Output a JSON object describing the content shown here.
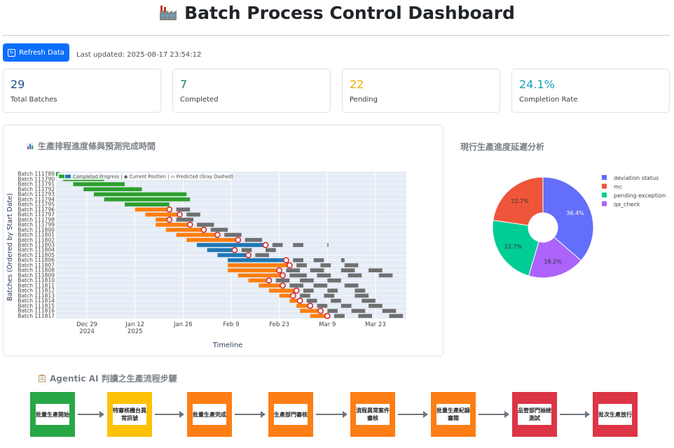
{
  "header": {
    "title": "Batch Process Control Dashboard",
    "icon": "factory-icon"
  },
  "toolbar": {
    "refresh_label": "Refresh Data",
    "last_updated": "Last updated: 2025-08-17 23:54:12"
  },
  "stats": [
    {
      "value": "29",
      "label": "Total Batches",
      "color": "#1f4e8c"
    },
    {
      "value": "7",
      "label": "Completed",
      "color": "#198754"
    },
    {
      "value": "22",
      "label": "Pending",
      "color": "#f0ad00"
    },
    {
      "value": "24.1%",
      "label": "Completion Rate",
      "color": "#17a2b8"
    }
  ],
  "gantt": {
    "title": "生產排程進度條與預測完成時間",
    "legend": "Completed Progress | ◉ Current Position | ▭ Predicted (Gray Dashed)",
    "ylabel": "Batches (Ordered by Start Date)",
    "xlabel": "Timeline",
    "xticks": [
      {
        "label": "Dec 29",
        "sub": "2024",
        "date": "2024-12-29"
      },
      {
        "label": "Jan 12",
        "sub": "2025",
        "date": "2025-01-12"
      },
      {
        "label": "Jan 26",
        "sub": "",
        "date": "2025-01-26"
      },
      {
        "label": "Feb 9",
        "sub": "",
        "date": "2025-02-09"
      },
      {
        "label": "Feb 23",
        "sub": "",
        "date": "2025-02-23"
      },
      {
        "label": "Mar 9",
        "sub": "",
        "date": "2025-03-09"
      },
      {
        "label": "Mar 23",
        "sub": "",
        "date": "2025-03-23"
      }
    ],
    "colors": {
      "completed": "#2ca02c",
      "orange": "#ff7f0e",
      "blue": "#1f77b4",
      "predicted": "#707070",
      "marker": "#d62728"
    }
  },
  "chart_data": [
    {
      "type": "bar",
      "title": "生產排程進度條與預測完成時間",
      "xlabel": "Timeline",
      "ylabel": "Batches (Ordered by Start Date)",
      "xlim": [
        "2024-12-20",
        "2025-04-01"
      ],
      "rows": [
        {
          "batch": "Batch 111789",
          "start": "2024-12-19",
          "progress_end": "2024-12-21",
          "status": "completed",
          "current": null,
          "predicted": []
        },
        {
          "batch": "Batch 111790",
          "start": "2024-12-22",
          "progress_end": "2025-01-03",
          "status": "completed",
          "current": null,
          "predicted": []
        },
        {
          "batch": "Batch 111791",
          "start": "2024-12-25",
          "progress_end": "2025-01-09",
          "status": "completed",
          "current": null,
          "predicted": []
        },
        {
          "batch": "Batch 111792",
          "start": "2024-12-28",
          "progress_end": "2025-01-14",
          "status": "completed",
          "current": null,
          "predicted": []
        },
        {
          "batch": "Batch 111793",
          "start": "2024-12-31",
          "progress_end": "2025-01-27",
          "status": "completed",
          "current": null,
          "predicted": []
        },
        {
          "batch": "Batch 111794",
          "start": "2025-01-03",
          "progress_end": "2025-01-28",
          "status": "completed",
          "current": null,
          "predicted": []
        },
        {
          "batch": "Batch 111795",
          "start": "2025-01-09",
          "progress_end": "2025-01-22",
          "status": "completed",
          "current": null,
          "predicted": []
        },
        {
          "batch": "Batch 111796",
          "start": "2025-01-12",
          "progress_end": "2025-01-22",
          "status": "in-progress",
          "current": "2025-01-22",
          "predicted": [
            [
              "2025-01-24",
              "2025-01-28"
            ]
          ]
        },
        {
          "batch": "Batch 111797",
          "start": "2025-01-15",
          "progress_end": "2025-01-25",
          "status": "in-progress",
          "current": "2025-01-25",
          "predicted": [
            [
              "2025-01-27",
              "2025-01-31"
            ]
          ]
        },
        {
          "batch": "Batch 111798",
          "start": "2025-01-18",
          "progress_end": "2025-01-22",
          "status": "in-progress",
          "current": "2025-01-22",
          "predicted": [
            [
              "2025-01-24",
              "2025-01-29"
            ]
          ]
        },
        {
          "batch": "Batch 111799",
          "start": "2025-01-18",
          "progress_end": "2025-01-28",
          "status": "in-progress",
          "current": "2025-01-28",
          "predicted": [
            [
              "2025-01-30",
              "2025-02-04"
            ]
          ]
        },
        {
          "batch": "Batch 111800",
          "start": "2025-01-21",
          "progress_end": "2025-02-01",
          "status": "in-progress",
          "current": "2025-02-01",
          "predicted": [
            [
              "2025-02-03",
              "2025-02-08"
            ]
          ]
        },
        {
          "batch": "Batch 111801",
          "start": "2025-01-24",
          "progress_end": "2025-02-05",
          "status": "in-progress",
          "current": "2025-02-05",
          "predicted": [
            [
              "2025-02-07",
              "2025-02-12"
            ]
          ]
        },
        {
          "batch": "Batch 111802",
          "start": "2025-01-27",
          "progress_end": "2025-02-11",
          "status": "in-progress",
          "current": "2025-02-11",
          "predicted": [
            [
              "2025-02-13",
              "2025-02-18"
            ]
          ]
        },
        {
          "batch": "Batch 111803",
          "start": "2025-01-30",
          "progress_end": "2025-02-19",
          "status": "in-progress-blue",
          "current": "2025-02-19",
          "predicted": [
            [
              "2025-02-21",
              "2025-02-24"
            ],
            [
              "2025-02-27",
              "2025-03-02"
            ],
            [
              "2025-03-09",
              "2025-03-09"
            ]
          ]
        },
        {
          "batch": "Batch 111804",
          "start": "2025-02-02",
          "progress_end": "2025-02-10",
          "status": "in-progress-blue",
          "current": "2025-02-10",
          "predicted": [
            [
              "2025-02-12",
              "2025-02-15"
            ],
            [
              "2025-02-19",
              "2025-02-22"
            ]
          ]
        },
        {
          "batch": "Batch 111805",
          "start": "2025-02-05",
          "progress_end": "2025-02-14",
          "status": "in-progress-blue",
          "current": "2025-02-14",
          "predicted": [
            [
              "2025-02-16",
              "2025-02-20"
            ]
          ]
        },
        {
          "batch": "Batch 111806",
          "start": "2025-02-08",
          "progress_end": "2025-02-25",
          "status": "in-progress-blue",
          "current": "2025-02-25",
          "predicted": [
            [
              "2025-02-27",
              "2025-03-02"
            ],
            [
              "2025-03-05",
              "2025-03-08"
            ],
            [
              "2025-03-13",
              "2025-03-14"
            ]
          ]
        },
        {
          "batch": "Batch 111807",
          "start": "2025-02-08",
          "progress_end": "2025-02-26",
          "status": "in-progress",
          "current": "2025-02-26",
          "predicted": [
            [
              "2025-02-28",
              "2025-03-03"
            ],
            [
              "2025-03-07",
              "2025-03-10"
            ],
            [
              "2025-03-14",
              "2025-03-18"
            ]
          ]
        },
        {
          "batch": "Batch 111808",
          "start": "2025-02-08",
          "progress_end": "2025-02-23",
          "status": "in-progress",
          "current": "2025-02-23",
          "predicted": [
            [
              "2025-02-25",
              "2025-03-01"
            ],
            [
              "2025-03-04",
              "2025-03-08"
            ],
            [
              "2025-03-13",
              "2025-03-17"
            ],
            [
              "2025-03-21",
              "2025-03-25"
            ]
          ]
        },
        {
          "batch": "Batch 111809",
          "start": "2025-02-11",
          "progress_end": "2025-02-24",
          "status": "in-progress",
          "current": "2025-02-24",
          "predicted": [
            [
              "2025-02-26",
              "2025-03-03"
            ],
            [
              "2025-03-06",
              "2025-03-10"
            ],
            [
              "2025-03-15",
              "2025-03-19"
            ],
            [
              "2025-03-24",
              "2025-03-28"
            ]
          ]
        },
        {
          "batch": "Batch 111810",
          "start": "2025-02-14",
          "progress_end": "2025-02-20",
          "status": "in-progress",
          "current": "2025-02-20",
          "predicted": [
            [
              "2025-02-22",
              "2025-02-26"
            ],
            [
              "2025-03-01",
              "2025-03-05"
            ],
            [
              "2025-03-09",
              "2025-03-13"
            ]
          ]
        },
        {
          "batch": "Batch 111811",
          "start": "2025-02-17",
          "progress_end": "2025-02-24",
          "status": "in-progress",
          "current": "2025-02-24",
          "predicted": [
            [
              "2025-02-26",
              "2025-03-02"
            ],
            [
              "2025-03-05",
              "2025-03-09"
            ],
            [
              "2025-03-14",
              "2025-03-18"
            ]
          ]
        },
        {
          "batch": "Batch 111812",
          "start": "2025-02-20",
          "progress_end": "2025-02-28",
          "status": "in-progress",
          "current": "2025-02-28",
          "predicted": [
            [
              "2025-03-02",
              "2025-03-05"
            ],
            [
              "2025-03-09",
              "2025-03-12"
            ],
            [
              "2025-03-17",
              "2025-03-20"
            ]
          ]
        },
        {
          "batch": "Batch 111813",
          "start": "2025-02-23",
          "progress_end": "2025-02-27",
          "status": "in-progress",
          "current": "2025-02-27",
          "predicted": [
            [
              "2025-03-01",
              "2025-03-04"
            ],
            [
              "2025-03-08",
              "2025-03-11"
            ],
            [
              "2025-03-17",
              "2025-03-21"
            ]
          ]
        },
        {
          "batch": "Batch 111814",
          "start": "2025-02-26",
          "progress_end": "2025-03-01",
          "status": "in-progress",
          "current": "2025-03-01",
          "predicted": [
            [
              "2025-03-03",
              "2025-03-06"
            ],
            [
              "2025-03-10",
              "2025-03-13"
            ],
            [
              "2025-03-19",
              "2025-03-23"
            ]
          ]
        },
        {
          "batch": "Batch 111815",
          "start": "2025-02-28",
          "progress_end": "2025-03-04",
          "status": "in-progress",
          "current": "2025-03-04",
          "predicted": [
            [
              "2025-03-06",
              "2025-03-09"
            ],
            [
              "2025-03-13",
              "2025-03-16"
            ],
            [
              "2025-03-21",
              "2025-03-25"
            ]
          ]
        },
        {
          "batch": "Batch 111816",
          "start": "2025-03-01",
          "progress_end": "2025-03-07",
          "status": "in-progress",
          "current": "2025-03-07",
          "predicted": [
            [
              "2025-03-09",
              "2025-03-12"
            ],
            [
              "2025-03-16",
              "2025-03-20"
            ],
            [
              "2025-03-25",
              "2025-03-29"
            ]
          ]
        },
        {
          "batch": "Batch 111817",
          "start": "2025-03-04",
          "progress_end": "2025-03-09",
          "status": "in-progress",
          "current": "2025-03-09",
          "predicted": [
            [
              "2025-03-11",
              "2025-03-14"
            ],
            [
              "2025-03-18",
              "2025-03-22"
            ],
            [
              "2025-03-27",
              "2025-03-31"
            ]
          ]
        }
      ]
    },
    {
      "type": "pie",
      "title": "現行生產進度延遲分析",
      "donut": true,
      "legend_position": "right",
      "slices": [
        {
          "label": "deviation status",
          "value": 36.4,
          "display": "36.4%",
          "color": "#636efa"
        },
        {
          "label": "qa_check",
          "value": 18.2,
          "display": "18.2%",
          "color": "#ab63fa"
        },
        {
          "label": "pending exception",
          "value": 22.7,
          "display": "22.7%",
          "color": "#00cc96"
        },
        {
          "label": "mc",
          "value": 22.7,
          "display": "22.7%",
          "color": "#ef553b"
        }
      ],
      "legend_order": [
        "deviation status",
        "mc",
        "pending exception",
        "qa_check"
      ]
    }
  ],
  "flow": {
    "title": "Agentic AI 判讀之生產流程步驟",
    "steps": [
      {
        "label": "批量生產開始",
        "color": "#28a745"
      },
      {
        "label": "特審核機台異常訊號",
        "color": "#ffc107"
      },
      {
        "label": "批量生產完成",
        "color": "#fd7e14"
      },
      {
        "label": "生產部門審核",
        "color": "#fd7e14"
      },
      {
        "label": "流程異常案件審核",
        "color": "#fd7e14"
      },
      {
        "label": "批量生產紀錄審閱",
        "color": "#fd7e14"
      },
      {
        "label": "品管部門抽檢測試",
        "color": "#dc3545"
      },
      {
        "label": "批次生產放行",
        "color": "#dc3545"
      }
    ]
  }
}
